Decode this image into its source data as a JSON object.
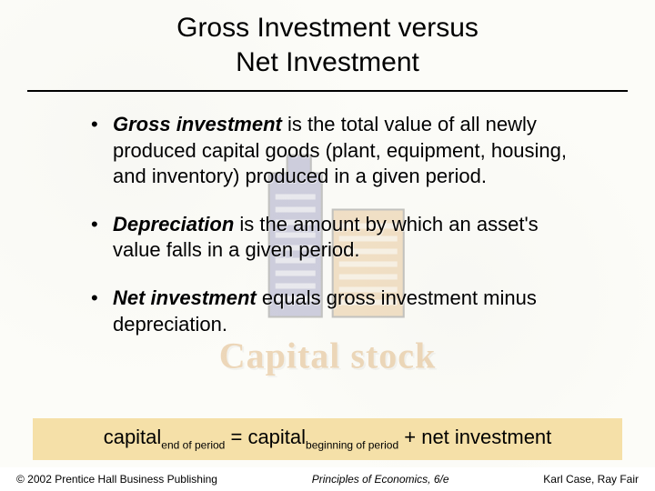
{
  "title_line1": "Gross Investment versus",
  "title_line2": "Net Investment",
  "bullets": [
    {
      "term": "Gross investment",
      "rest": " is the total value of all newly produced capital goods (plant, equipment, housing, and inventory) produced in a given period."
    },
    {
      "term": "Depreciation",
      "rest": " is the amount by which an asset's value falls in a given period."
    },
    {
      "term": "Net investment",
      "rest": " equals gross investment minus depreciation."
    }
  ],
  "equation": {
    "lhs": "capital",
    "lhs_sub": "end of period",
    "eq": " = ",
    "rhs1": "capital",
    "rhs1_sub": "beginning of period",
    "plus": " + ",
    "rhs2": "net investment",
    "highlight_bg": "#f5e0a8"
  },
  "watermark_label": "Capital stock",
  "footer": {
    "left": "© 2002 Prentice Hall Business Publishing",
    "center": "Principles of Economics, 6/e",
    "right": "Karl Case, Ray Fair"
  },
  "colors": {
    "background": "#fcfcf8",
    "rule": "#000000",
    "text": "#000000",
    "highlight": "#f5e0a8",
    "watermark_text": "#c87a1a",
    "building_tower1": "#5a5a9c",
    "building_tower2": "#d89a4a"
  },
  "typography": {
    "title_fontsize": 30,
    "bullet_fontsize": 22,
    "equation_fontsize": 22,
    "sub_fontsize": 12,
    "footer_fontsize": 12,
    "watermark_fontsize": 40
  }
}
